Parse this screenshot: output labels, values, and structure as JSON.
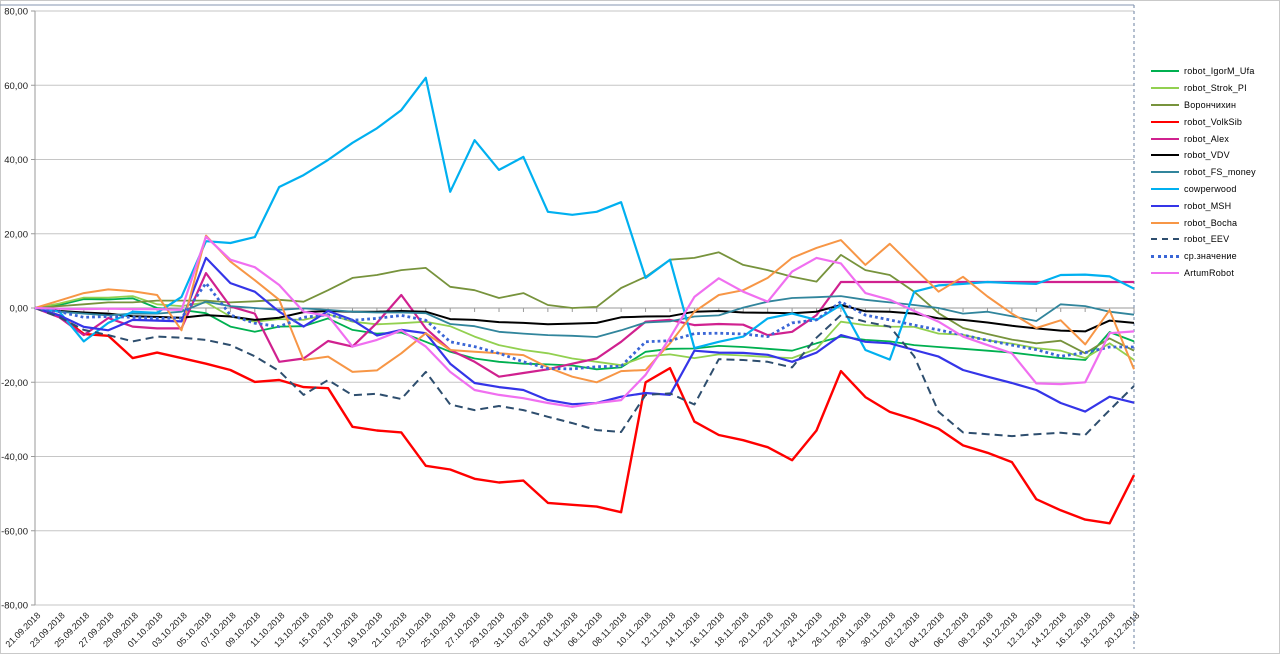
{
  "chart_data": {
    "type": "line",
    "title": "",
    "xlabel": "",
    "ylabel": "",
    "ylim": [
      -80,
      80
    ],
    "grid": true,
    "legend_position": "right",
    "y_tick_labels": [
      "80,00",
      "60,00",
      "40,00",
      "20,00",
      "0,00",
      "-20,00",
      "-40,00",
      "-60,00",
      "-80,00"
    ],
    "y_tick_values": [
      80,
      60,
      40,
      20,
      0,
      -20,
      -40,
      -60,
      -80
    ],
    "x_labels": [
      "21.09.2018",
      "23.09.2018",
      "25.09.2018",
      "27.09.2018",
      "29.09.2018",
      "01.10.2018",
      "03.10.2018",
      "05.10.2018",
      "07.10.2018",
      "09.10.2018",
      "11.10.2018",
      "13.10.2018",
      "15.10.2018",
      "17.10.2018",
      "19.10.2018",
      "21.10.2018",
      "23.10.2018",
      "25.10.2018",
      "27.10.2018",
      "29.10.2018",
      "31.10.2018",
      "02.11.2018",
      "04.11.2018",
      "06.11.2018",
      "08.11.2018",
      "10.11.2018",
      "12.11.2018",
      "14.11.2018",
      "16.11.2018",
      "18.11.2018",
      "20.11.2018",
      "22.11.2018",
      "24.11.2018",
      "26.11.2018",
      "28.11.2018",
      "30.11.2018",
      "02.12.2018",
      "04.12.2018",
      "06.12.2018",
      "08.12.2018",
      "10.12.2018",
      "12.12.2018",
      "14.12.2018",
      "16.12.2018",
      "18.12.2018",
      "20.12.2018"
    ],
    "series": [
      {
        "name": "robot_IgorM_Ufa",
        "color": "#00B050",
        "dash": "solid",
        "width": 1.8,
        "values": [
          0,
          0.8,
          2.4,
          2.3,
          2.6,
          0,
          -0.5,
          -1.4,
          -5.0,
          -6.4,
          -5.0,
          -4.9,
          -2.8,
          -5.9,
          -6.9,
          -6.6,
          -9.1,
          -11.8,
          -13.6,
          -14.5,
          -15.0,
          -15.2,
          -15.5,
          -16.5,
          -16.0,
          -11.8,
          -11.0,
          -10.9,
          -10.2,
          -10.5,
          -11.0,
          -11.5,
          -9.5,
          -7.7,
          -8.6,
          -9.0,
          -10.0,
          -10.5,
          -11.0,
          -11.5,
          -12.0,
          -12.8,
          -13.5,
          -14.0,
          -6.5,
          -9.0
        ]
      },
      {
        "name": "robot_Strok_PI",
        "color": "#92D050",
        "dash": "solid",
        "width": 1.8,
        "values": [
          0,
          1.2,
          2.8,
          2.8,
          3.2,
          1.0,
          0.5,
          1.5,
          -2.3,
          -3.7,
          -3.0,
          -3.2,
          -1.7,
          -3.7,
          -4.4,
          -4.1,
          -3.7,
          -4.9,
          -7.7,
          -10.0,
          -11.3,
          -12.2,
          -13.6,
          -14.5,
          -15.4,
          -13.0,
          -12.5,
          -13.5,
          -12.5,
          -12.8,
          -13.2,
          -13.5,
          -11.0,
          -3.7,
          -4.6,
          -5.0,
          -5.1,
          -6.9,
          -7.2,
          -8.7,
          -9.6,
          -10.8,
          -11.5,
          -13.5,
          -9.5,
          -14.0
        ]
      },
      {
        "name": "Ворончихин",
        "color": "#77933C",
        "dash": "solid",
        "width": 1.8,
        "values": [
          0,
          0.5,
          1.0,
          1.5,
          1.5,
          2.0,
          2.0,
          2.0,
          1.5,
          1.8,
          2.2,
          1.7,
          4.8,
          8.1,
          8.9,
          10.2,
          10.8,
          5.7,
          4.8,
          2.7,
          4.0,
          0.8,
          0,
          0.3,
          5.4,
          8.4,
          13.0,
          13.5,
          15.0,
          11.6,
          10.2,
          8.4,
          7.1,
          14.3,
          10.2,
          8.9,
          4.4,
          -1.4,
          -5.4,
          -7.0,
          -8.5,
          -9.5,
          -8.8,
          -12.2,
          -8.2,
          -11.5
        ]
      },
      {
        "name": "robot_VolkSib",
        "color": "#FF0000",
        "dash": "solid",
        "width": 2.4,
        "values": [
          0,
          -2.0,
          -7.0,
          -7.5,
          -13.5,
          -12.0,
          -13.5,
          -15.0,
          -16.7,
          -19.9,
          -19.4,
          -21.3,
          -21.6,
          -32.0,
          -33.0,
          -33.5,
          -42.5,
          -43.5,
          -46.0,
          -47.0,
          -46.5,
          -52.5,
          -53.0,
          -53.5,
          -55.0,
          -20.0,
          -16.2,
          -30.6,
          -34.2,
          -35.6,
          -37.5,
          -41.0,
          -33.0,
          -17.0,
          -24.0,
          -28.0,
          -30.0,
          -32.5,
          -37.0,
          -39.0,
          -41.5,
          -51.5,
          -54.5,
          -57.0,
          -58.0,
          -45.0
        ]
      },
      {
        "name": "robot_Alex",
        "color": "#D0218F",
        "dash": "solid",
        "width": 2.2,
        "values": [
          0,
          -2.5,
          -7.3,
          -2.7,
          -5.0,
          -5.5,
          -5.5,
          9.4,
          0.4,
          -1.5,
          -14.5,
          -13.6,
          -8.9,
          -10.4,
          -4.0,
          3.5,
          -5.5,
          -11.3,
          -14.5,
          -18.5,
          -17.5,
          -16.5,
          -15.0,
          -13.6,
          -9.1,
          -3.7,
          -3.2,
          -4.6,
          -4.3,
          -4.5,
          -7.3,
          -6.4,
          -1.9,
          7.0,
          7.0,
          7.0,
          7.0,
          7.0,
          7.0,
          7.0,
          7.0,
          7.0,
          7.0,
          7.0,
          7.0,
          7.0
        ]
      },
      {
        "name": "robot_VDV",
        "color": "#000000",
        "dash": "solid",
        "width": 2.0,
        "values": [
          0,
          -0.8,
          -1.2,
          -1.5,
          -2.2,
          -2.4,
          -2.6,
          -1.9,
          -2.3,
          -3.2,
          -2.6,
          -1.1,
          -0.8,
          -1.0,
          -1.0,
          -0.8,
          -1.0,
          -3.0,
          -3.2,
          -3.8,
          -4.0,
          -4.4,
          -4.2,
          -4.0,
          -2.5,
          -2.3,
          -2.2,
          -1.0,
          -0.8,
          -1.2,
          -1.3,
          -1.4,
          -1.0,
          0.8,
          -0.9,
          -1.0,
          -1.5,
          -2.8,
          -3.2,
          -3.9,
          -4.8,
          -5.5,
          -6.1,
          -6.3,
          -3.4,
          -4.0
        ]
      },
      {
        "name": "robot_FS_money",
        "color": "#31859C",
        "dash": "solid",
        "width": 1.8,
        "values": [
          0,
          -1.0,
          -1.5,
          -2.0,
          -1.5,
          -1.5,
          -1.0,
          1.7,
          0.5,
          0,
          -0.5,
          -0.1,
          -0.5,
          -1.0,
          -1.2,
          -1.2,
          -1.4,
          -4.3,
          -4.9,
          -6.4,
          -6.9,
          -7.3,
          -7.5,
          -7.8,
          -6.0,
          -3.9,
          -3.6,
          -2.3,
          -2.0,
          0.1,
          1.7,
          2.7,
          2.9,
          3.2,
          2.2,
          1.5,
          0.8,
          0,
          -1.5,
          -1.0,
          -2.2,
          -3.5,
          1.0,
          0.5,
          -1.0,
          -1.8
        ]
      },
      {
        "name": "cowperwood",
        "color": "#00B0F0",
        "dash": "solid",
        "width": 2.2,
        "values": [
          0,
          -1.0,
          -9.0,
          -4.0,
          -1.0,
          -1.3,
          3.0,
          18.0,
          17.5,
          19.1,
          32.6,
          35.8,
          39.9,
          44.5,
          48.4,
          53.3,
          62.0,
          31.3,
          45.2,
          37.2,
          40.7,
          25.9,
          25.1,
          25.9,
          28.5,
          8.1,
          13.0,
          -10.8,
          -9.1,
          -7.7,
          -2.8,
          -1.5,
          -3.2,
          0.8,
          -11.3,
          -13.9,
          4.4,
          6.1,
          6.5,
          7.0,
          6.7,
          6.5,
          8.9,
          9.0,
          8.5,
          5.2
        ]
      },
      {
        "name": "robot_MSH",
        "color": "#3535E8",
        "dash": "solid",
        "width": 2.2,
        "values": [
          0,
          -2.0,
          -5.1,
          -6.0,
          -3.2,
          -3.4,
          -3.6,
          13.5,
          6.7,
          4.4,
          -1.0,
          -5.0,
          -0.8,
          -3.2,
          -7.4,
          -5.9,
          -6.8,
          -15.0,
          -20.2,
          -21.3,
          -22.1,
          -24.8,
          -25.9,
          -25.6,
          -23.9,
          -22.9,
          -23.4,
          -11.5,
          -12.0,
          -12.1,
          -12.6,
          -14.5,
          -12.0,
          -7.3,
          -9.1,
          -9.5,
          -11.3,
          -13.1,
          -16.7,
          -18.5,
          -20.2,
          -22.1,
          -25.6,
          -27.9,
          -23.9,
          -25.5
        ]
      },
      {
        "name": "robot_Bocha",
        "color": "#F79646",
        "dash": "solid",
        "width": 2.0,
        "values": [
          0,
          2.0,
          4.0,
          5.0,
          4.5,
          3.5,
          -6.0,
          19.5,
          12.5,
          7.5,
          2.2,
          -14.0,
          -13.1,
          -17.2,
          -16.8,
          -12.2,
          -6.8,
          -11.3,
          -11.8,
          -12.2,
          -12.7,
          -16.0,
          -18.5,
          -20.0,
          -17.0,
          -16.7,
          -9.5,
          -1.0,
          3.5,
          4.8,
          8.1,
          13.5,
          16.2,
          18.3,
          11.6,
          17.3,
          10.8,
          4.4,
          8.4,
          3.1,
          -1.5,
          -5.4,
          -3.3,
          -9.8,
          -0.6,
          -16.5
        ]
      },
      {
        "name": "robot_EEV",
        "color": "#2E4E6E",
        "dash": "dashed",
        "width": 2.0,
        "values": [
          0,
          -2.5,
          -5.9,
          -7.3,
          -9.0,
          -7.7,
          -8.0,
          -8.6,
          -10.0,
          -13.0,
          -17.0,
          -23.4,
          -19.4,
          -23.5,
          -23.1,
          -24.5,
          -17.2,
          -26.0,
          -27.5,
          -26.4,
          -27.5,
          -29.3,
          -31.0,
          -32.9,
          -33.4,
          -23.4,
          -23.0,
          -26.0,
          -13.8,
          -14.0,
          -14.5,
          -16.0,
          -8.0,
          -1.9,
          -3.7,
          -5.0,
          -13.0,
          -28.0,
          -33.5,
          -34.0,
          -34.5,
          -34.0,
          -33.6,
          -34.2,
          -27.5,
          -21.0
        ]
      },
      {
        "name": "ср.значение",
        "color": "#3A66D6",
        "dash": "dotted",
        "width": 2.8,
        "values": [
          0,
          -1.0,
          -2.5,
          -2.3,
          -2.5,
          -2.8,
          -2.7,
          6.7,
          -1.9,
          -4.1,
          -5.0,
          -2.5,
          -1.8,
          -3.3,
          -2.8,
          -2.0,
          -3.3,
          -9.1,
          -10.4,
          -12.2,
          -14.5,
          -16.3,
          -16.4,
          -15.8,
          -15.7,
          -9.1,
          -8.8,
          -6.9,
          -6.8,
          -7.0,
          -7.7,
          -4.0,
          -3.2,
          1.7,
          -1.9,
          -3.2,
          -4.6,
          -5.9,
          -7.3,
          -8.7,
          -10.0,
          -11.2,
          -13.0,
          -12.0,
          -10.5,
          -10.5
        ]
      },
      {
        "name": "ArtumRobot",
        "color": "#F06FF0",
        "dash": "solid",
        "width": 2.2,
        "values": [
          0,
          -0.2,
          -0.3,
          -0.2,
          -0.3,
          -0.3,
          -0.5,
          19.2,
          13.0,
          11.0,
          6.2,
          -1.0,
          -2.1,
          -10.4,
          -8.6,
          -6.0,
          -10.4,
          -17.2,
          -22.1,
          -23.4,
          -24.3,
          -25.6,
          -26.6,
          -25.6,
          -24.8,
          -18.0,
          -8.0,
          3.0,
          8.0,
          4.4,
          1.7,
          9.8,
          13.5,
          12.0,
          4.0,
          2.2,
          -0.8,
          -3.7,
          -7.7,
          -10.0,
          -12.2,
          -20.3,
          -20.5,
          -20.0,
          -6.8,
          -6.3
        ]
      }
    ],
    "legend_entries": [
      "robot_IgorM_Ufa",
      "robot_Strok_PI",
      "Ворончихин",
      "robot_VolkSib",
      "robot_Alex",
      "robot_VDV",
      "robot_FS_money",
      "cowperwood",
      "robot_MSH",
      "robot_Bocha",
      "robot_EEV",
      "ср.значение",
      "ArtumRobot"
    ]
  },
  "frame": {
    "border_color": "#8496B0",
    "gridline_color": "#C6C6C6",
    "axis_color": "#9A9A9A",
    "label_color": "#1a1a1a"
  }
}
